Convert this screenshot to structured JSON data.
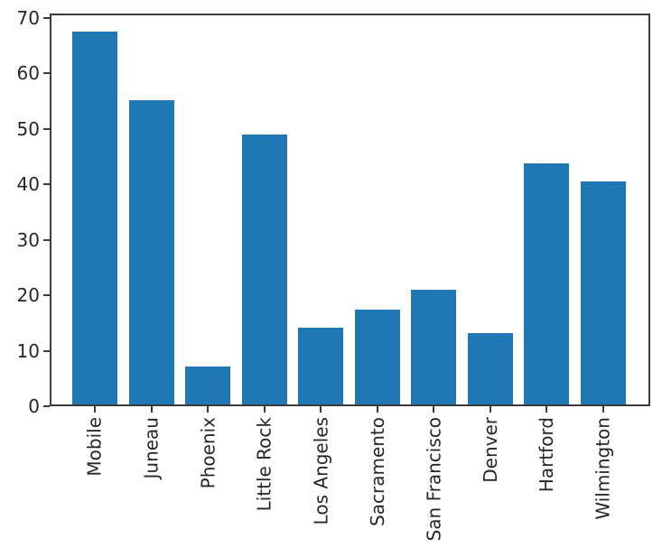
{
  "figure": {
    "background": "#ffffff"
  },
  "chart_data": {
    "type": "bar",
    "title": "",
    "xlabel": "",
    "ylabel": "",
    "categories": [
      "Mobile",
      "Juneau",
      "Phoenix",
      "Little Rock",
      "Los Angeles",
      "Sacramento",
      "San Francisco",
      "Denver",
      "Hartford",
      "Wilmington"
    ],
    "values": [
      67.2,
      54.9,
      6.8,
      48.7,
      13.9,
      17.1,
      20.7,
      12.9,
      43.5,
      40.2
    ],
    "yticks": [
      0,
      10,
      20,
      30,
      40,
      50,
      60,
      70
    ],
    "ytick_labels": [
      "0",
      "10",
      "20",
      "30",
      "40",
      "50",
      "60",
      "70"
    ],
    "ylim": [
      0,
      70.8
    ],
    "x_tick_rotation": 90,
    "grid": false,
    "legend": null,
    "bar_color": "#1f77b4",
    "spine_color": "#3b3b3b",
    "text_color": "#262626"
  }
}
